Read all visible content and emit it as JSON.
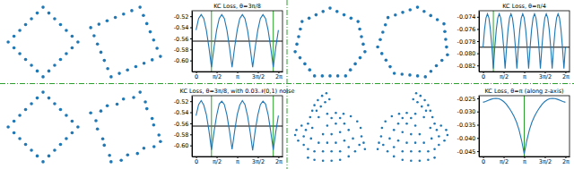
{
  "chart_data": [
    {
      "type": "scatter",
      "color": "#1f77b4",
      "tick_labels": false,
      "x": [
        0,
        0.167,
        0.333,
        0.5,
        0.667,
        0.833,
        1,
        0.833,
        0.667,
        0.5,
        0.333,
        0.167,
        0,
        -0.167,
        -0.333,
        -0.5,
        -0.667,
        -0.833,
        -1,
        -0.833,
        -0.667,
        -0.5,
        -0.333,
        -0.167
      ],
      "y": [
        1,
        0.833,
        0.667,
        0.5,
        0.333,
        0.167,
        0,
        -0.167,
        -0.333,
        -0.5,
        -0.667,
        -0.833,
        -1,
        -0.833,
        -0.667,
        -0.5,
        -0.333,
        -0.167,
        0,
        0.167,
        0.333,
        0.5,
        0.667,
        0.833
      ]
    },
    {
      "type": "scatter",
      "color": "#1f77b4",
      "tick_labels": false,
      "x": [
        -0.924,
        -0.706,
        -0.489,
        -0.271,
        -0.052,
        0.165,
        0.383,
        0.473,
        0.563,
        0.653,
        0.744,
        0.834,
        0.924,
        0.706,
        0.489,
        0.271,
        0.052,
        -0.165,
        -0.383,
        -0.473,
        -0.563,
        -0.653,
        -0.744,
        -0.834
      ],
      "y": [
        0.383,
        0.473,
        0.563,
        0.653,
        0.744,
        0.834,
        0.924,
        0.706,
        0.489,
        0.271,
        0.052,
        -0.165,
        -0.383,
        -0.473,
        -0.563,
        -0.653,
        -0.744,
        -0.834,
        -0.924,
        -0.706,
        -0.489,
        -0.271,
        -0.052,
        0.165
      ]
    },
    {
      "type": "line",
      "title": "KC Loss, θ=3π/8",
      "color": "#1f77b4",
      "x": [
        0,
        0.1963,
        0.3927,
        0.589,
        0.7854,
        0.9817,
        1.1781,
        1.3744,
        1.5708,
        1.7671,
        1.9635,
        2.1598,
        2.3562,
        2.5525,
        2.7489,
        2.9452,
        3.1416,
        3.3379,
        3.5343,
        3.7306,
        3.927,
        4.1233,
        4.3197,
        4.516,
        4.7124,
        4.9087,
        5.1051,
        5.3014,
        5.4978,
        5.6941,
        5.8905,
        6.0868,
        6.2832
      ],
      "values": [
        -0.545,
        -0.524,
        -0.517,
        -0.524,
        -0.545,
        -0.576,
        -0.612,
        -0.576,
        -0.545,
        -0.524,
        -0.517,
        -0.524,
        -0.545,
        -0.576,
        -0.612,
        -0.576,
        -0.545,
        -0.524,
        -0.517,
        -0.524,
        -0.545,
        -0.576,
        -0.612,
        -0.576,
        -0.545,
        -0.524,
        -0.517,
        -0.524,
        -0.545,
        -0.576,
        -0.612,
        -0.576,
        -0.545
      ],
      "xlim": [
        -0.3142,
        6.5974
      ],
      "ylim": [
        -0.62,
        -0.51
      ],
      "xticks": [
        0,
        {
          "value": 1.5708,
          "label": "π/2"
        },
        {
          "value": 3.1416,
          "label": "π"
        },
        {
          "value": 4.7124,
          "label": "3π/2"
        },
        {
          "value": 6.2832,
          "label": "2π"
        }
      ],
      "yticks": [
        -0.52,
        -0.54,
        -0.56,
        -0.58,
        {
          "value": -0.6,
          "label": "-0.60"
        }
      ],
      "vlines": [
        1.1781,
        5.8905
      ],
      "hlines": [
        -0.565
      ]
    },
    {
      "type": "scatter",
      "color": "#1f77b4",
      "tick_labels": false,
      "x": [
        0,
        -0.195,
        -0.391,
        -0.586,
        -0.782,
        -0.83,
        -0.878,
        -0.927,
        -0.975,
        -0.84,
        -0.704,
        -0.569,
        -0.434,
        -0.217,
        0,
        0.217,
        0.434,
        0.569,
        0.704,
        0.84,
        0.975,
        0.927,
        0.878,
        0.83,
        0.782,
        0.586,
        0.391,
        0.195
      ],
      "y": [
        1,
        0.906,
        0.812,
        0.718,
        0.624,
        0.412,
        0.201,
        -0.011,
        -0.223,
        -0.392,
        -0.562,
        -0.731,
        -0.901,
        -0.901,
        -0.901,
        -0.901,
        -0.901,
        -0.731,
        -0.562,
        -0.392,
        -0.223,
        -0.011,
        0.201,
        0.412,
        0.624,
        0.718,
        0.812,
        0.906
      ]
    },
    {
      "type": "scatter",
      "color": "#1f77b4",
      "tick_labels": false,
      "x": [
        -0.707,
        -0.779,
        -0.851,
        -0.922,
        -0.994,
        -0.878,
        -0.763,
        -0.648,
        -0.532,
        -0.317,
        -0.1,
        0.115,
        0.33,
        0.484,
        0.637,
        0.791,
        0.944,
        0.919,
        0.895,
        0.871,
        0.847,
        0.663,
        0.479,
        0.296,
        0.112,
        -0.093,
        -0.298,
        -0.503
      ],
      "y": [
        0.707,
        0.503,
        0.298,
        0.093,
        -0.112,
        -0.296,
        -0.479,
        -0.663,
        -0.847,
        -0.871,
        -0.895,
        -0.919,
        -0.944,
        -0.791,
        -0.637,
        -0.484,
        -0.33,
        -0.115,
        0.1,
        0.317,
        0.532,
        0.648,
        0.763,
        0.878,
        0.994,
        0.922,
        0.851,
        0.779
      ]
    },
    {
      "type": "line",
      "title": "KC Loss, θ=π/4",
      "color": "#1f77b4",
      "x": [
        0,
        0.1122,
        0.2244,
        0.3366,
        0.4488,
        0.561,
        0.6732,
        0.7854,
        0.8976,
        1.0098,
        1.122,
        1.2342,
        1.3464,
        1.4586,
        1.5708,
        1.683,
        1.7952,
        1.9074,
        2.0196,
        2.1318,
        2.244,
        2.3562,
        2.4684,
        2.5806,
        2.6928,
        2.805,
        2.9172,
        3.0294,
        3.1416,
        3.2538,
        3.366,
        3.4782,
        3.5904,
        3.7026,
        3.8148,
        3.927,
        4.0392,
        4.1514,
        4.2636,
        4.3758,
        4.488,
        4.6002,
        4.7124,
        4.8246,
        4.9368,
        5.049,
        5.1612,
        5.2734,
        5.3856,
        5.4978,
        5.61,
        5.7222,
        5.8344,
        5.9466,
        6.0588,
        6.171,
        6.2832
      ],
      "values": [
        -0.079,
        -0.0761,
        -0.0742,
        -0.0735,
        -0.0742,
        -0.0761,
        -0.079,
        -0.0825,
        -0.079,
        -0.0761,
        -0.0742,
        -0.0735,
        -0.0742,
        -0.0761,
        -0.079,
        -0.0825,
        -0.079,
        -0.0761,
        -0.0742,
        -0.0735,
        -0.0742,
        -0.0761,
        -0.079,
        -0.0825,
        -0.079,
        -0.0761,
        -0.0742,
        -0.0735,
        -0.0742,
        -0.0761,
        -0.079,
        -0.0825,
        -0.079,
        -0.0761,
        -0.0742,
        -0.0735,
        -0.0742,
        -0.0761,
        -0.079,
        -0.0825,
        -0.079,
        -0.0761,
        -0.0742,
        -0.0735,
        -0.0742,
        -0.0761,
        -0.079,
        -0.0825,
        -0.079,
        -0.0761,
        -0.0742,
        -0.0735,
        -0.0742,
        -0.0761,
        -0.079,
        -0.0825,
        -0.079
      ],
      "xlim": [
        -0.3142,
        6.5974
      ],
      "ylim": [
        -0.083,
        -0.073
      ],
      "xticks": [
        0,
        {
          "value": 1.5708,
          "label": "π/2"
        },
        {
          "value": 3.1416,
          "label": "π"
        },
        {
          "value": 4.7124,
          "label": "3π/2"
        },
        {
          "value": 6.2832,
          "label": "2π"
        }
      ],
      "yticks": [
        -0.074,
        -0.076,
        -0.078,
        {
          "value": -0.08,
          "label": "-0.080"
        },
        -0.082
      ],
      "vlines": [
        0.7854
      ],
      "hlines": [
        -0.079
      ]
    },
    {
      "type": "scatter",
      "color": "#1f77b4",
      "tick_labels": false,
      "x": [
        0,
        0.167,
        0.333,
        0.5,
        0.667,
        0.833,
        1,
        0.833,
        0.667,
        0.5,
        0.333,
        0.167,
        0,
        -0.167,
        -0.333,
        -0.5,
        -0.667,
        -0.833,
        -1,
        -0.833,
        -0.667,
        -0.5,
        -0.333,
        -0.167
      ],
      "y": [
        1,
        0.833,
        0.667,
        0.5,
        0.333,
        0.167,
        0,
        -0.167,
        -0.333,
        -0.5,
        -0.667,
        -0.833,
        -1,
        -0.833,
        -0.667,
        -0.5,
        -0.333,
        -0.167,
        0,
        0.167,
        0.333,
        0.5,
        0.667,
        0.833
      ]
    },
    {
      "type": "scatter",
      "color": "#1f77b4",
      "tick_labels": false,
      "x": [
        -0.95,
        -0.68,
        -0.51,
        -0.25,
        -0.08,
        0.19,
        0.36,
        0.5,
        0.54,
        0.68,
        0.72,
        0.86,
        0.9,
        0.73,
        0.46,
        0.29,
        0.03,
        -0.14,
        -0.41,
        -0.45,
        -0.59,
        -0.63,
        -0.77,
        -0.81
      ],
      "y": [
        0.4,
        0.45,
        0.59,
        0.63,
        0.77,
        0.81,
        0.95,
        0.69,
        0.51,
        0.25,
        0.08,
        -0.19,
        -0.36,
        -0.5,
        -0.54,
        -0.68,
        -0.72,
        -0.86,
        -0.9,
        -0.73,
        -0.46,
        -0.29,
        -0.03,
        0.19
      ]
    },
    {
      "type": "line",
      "title": "KC Loss, θ=3π/8, with 0.03𝒩(0,1) noise",
      "color": "#1f77b4",
      "x": [
        0,
        0.1963,
        0.3927,
        0.589,
        0.7854,
        0.9817,
        1.1781,
        1.3744,
        1.5708,
        1.7671,
        1.9635,
        2.1598,
        2.3562,
        2.5525,
        2.7489,
        2.9452,
        3.1416,
        3.3379,
        3.5343,
        3.7306,
        3.927,
        4.1233,
        4.3197,
        4.516,
        4.7124,
        4.9087,
        5.1051,
        5.3014,
        5.4978,
        5.6941,
        5.8905,
        6.0868,
        6.2832
      ],
      "values": [
        -0.546,
        -0.526,
        -0.519,
        -0.527,
        -0.544,
        -0.573,
        -0.608,
        -0.575,
        -0.546,
        -0.525,
        -0.52,
        -0.526,
        -0.545,
        -0.574,
        -0.607,
        -0.574,
        -0.544,
        -0.527,
        -0.519,
        -0.526,
        -0.546,
        -0.575,
        -0.609,
        -0.573,
        -0.545,
        -0.526,
        -0.52,
        -0.525,
        -0.544,
        -0.574,
        -0.608,
        -0.575,
        -0.546
      ],
      "xlim": [
        -0.3142,
        6.5974
      ],
      "ylim": [
        -0.62,
        -0.51
      ],
      "xticks": [
        0,
        {
          "value": 1.5708,
          "label": "π/2"
        },
        {
          "value": 3.1416,
          "label": "π"
        },
        {
          "value": 4.7124,
          "label": "3π/2"
        },
        {
          "value": 6.2832,
          "label": "2π"
        }
      ],
      "yticks": [
        -0.52,
        -0.54,
        -0.56,
        -0.58,
        {
          "value": -0.6,
          "label": "-0.60"
        }
      ],
      "vlines": [
        1.1781,
        5.8905
      ],
      "hlines": [
        -0.565
      ]
    },
    {
      "type": "scatter",
      "color": "#1f77b4",
      "tick_labels": false,
      "x": [
        -0.45,
        -0.3,
        -0.1,
        0.1,
        0.3,
        0.5,
        0.65,
        0.75,
        0.8,
        0.78,
        0.7,
        0.55,
        0.38,
        0.2,
        0.0,
        -0.2,
        -0.3,
        -0.1,
        0.1,
        0.3,
        0.5,
        -0.2,
        0.0,
        0.2,
        0.4,
        0.6,
        -0.1,
        0.1,
        0.3,
        0.5,
        0.0,
        0.2,
        0.4,
        0.1,
        0.3,
        -0.45,
        -0.6,
        -0.72,
        -0.75,
        -0.68,
        -0.55,
        -0.45,
        -0.5,
        -0.55,
        -0.38,
        -0.35,
        -0.4,
        -0.35,
        -0.3,
        -0.22,
        -0.12,
        -0.02,
        -0.25,
        -0.15,
        -0.05,
        0.05,
        0.85,
        0.88
      ],
      "y": [
        -0.65,
        -0.7,
        -0.72,
        -0.72,
        -0.7,
        -0.62,
        -0.5,
        -0.35,
        -0.15,
        0.05,
        0.2,
        0.32,
        0.38,
        0.4,
        0.38,
        0.3,
        -0.5,
        -0.5,
        -0.5,
        -0.5,
        -0.4,
        -0.3,
        -0.3,
        -0.3,
        -0.25,
        -0.2,
        -0.1,
        -0.1,
        -0.05,
        0.0,
        0.1,
        0.15,
        0.15,
        0.28,
        0.28,
        0.15,
        0.1,
        0.0,
        -0.12,
        -0.25,
        -0.35,
        -0.45,
        0.0,
        -0.15,
        -0.2,
        0.05,
        0.3,
        0.45,
        0.58,
        0.7,
        0.8,
        0.86,
        0.45,
        0.55,
        0.65,
        0.72,
        -0.3,
        -0.45
      ]
    },
    {
      "type": "scatter",
      "color": "#1f77b4",
      "tick_labels": false,
      "x": [
        0.45,
        0.3,
        0.1,
        -0.1,
        -0.3,
        -0.5,
        -0.65,
        -0.75,
        -0.8,
        -0.78,
        -0.7,
        -0.55,
        -0.38,
        -0.2,
        0.0,
        0.2,
        0.3,
        0.1,
        -0.1,
        -0.3,
        -0.5,
        0.2,
        0.0,
        -0.2,
        -0.4,
        -0.6,
        0.1,
        -0.1,
        -0.3,
        -0.5,
        0.0,
        -0.2,
        -0.4,
        -0.1,
        -0.3,
        0.45,
        0.6,
        0.72,
        0.75,
        0.68,
        0.55,
        0.45,
        0.5,
        0.55,
        0.38,
        0.35,
        0.4,
        0.35,
        0.3,
        0.22,
        0.12,
        0.02,
        0.25,
        0.15,
        0.05,
        -0.05,
        -0.85,
        -0.88
      ],
      "y": [
        -0.65,
        -0.7,
        -0.72,
        -0.72,
        -0.7,
        -0.62,
        -0.5,
        -0.35,
        -0.15,
        0.05,
        0.2,
        0.32,
        0.38,
        0.4,
        0.38,
        0.3,
        -0.5,
        -0.5,
        -0.5,
        -0.5,
        -0.4,
        -0.3,
        -0.3,
        -0.3,
        -0.25,
        -0.2,
        -0.1,
        -0.1,
        -0.05,
        0.0,
        0.1,
        0.15,
        0.15,
        0.28,
        0.28,
        0.15,
        0.1,
        0.0,
        -0.12,
        -0.25,
        -0.35,
        -0.45,
        0.0,
        -0.15,
        -0.2,
        0.05,
        0.3,
        0.45,
        0.58,
        0.7,
        0.8,
        0.86,
        0.45,
        0.55,
        0.65,
        0.72,
        -0.3,
        -0.45
      ]
    },
    {
      "type": "line",
      "title": "KC Loss, θ=π (along z-axis)",
      "color": "#1f77b4",
      "x": [
        0,
        0.1963,
        0.3927,
        0.589,
        0.7854,
        0.9817,
        1.1781,
        1.3744,
        1.5708,
        1.7671,
        1.9635,
        2.1598,
        2.3562,
        2.5525,
        2.7489,
        2.9452,
        3.1416,
        3.3379,
        3.5343,
        3.7306,
        3.927,
        4.1233,
        4.3197,
        4.516,
        4.7124,
        4.9087,
        5.1051,
        5.3014,
        5.4978,
        5.6941,
        5.8905,
        6.0868,
        6.2832
      ],
      "values": [
        -0.0265,
        -0.0262,
        -0.0258,
        -0.0254,
        -0.0251,
        -0.025,
        -0.0251,
        -0.0255,
        -0.0262,
        -0.0272,
        -0.0285,
        -0.03,
        -0.0318,
        -0.034,
        -0.037,
        -0.041,
        -0.046,
        -0.041,
        -0.037,
        -0.034,
        -0.0318,
        -0.03,
        -0.0285,
        -0.0272,
        -0.0262,
        -0.0255,
        -0.0251,
        -0.025,
        -0.0251,
        -0.0254,
        -0.0258,
        -0.0262,
        -0.0265
      ],
      "xlim": [
        -0.3142,
        6.5974
      ],
      "ylim": [
        -0.047,
        -0.024
      ],
      "xticks": [
        0,
        {
          "value": 1.5708,
          "label": "π/2"
        },
        {
          "value": 3.1416,
          "label": "π"
        },
        {
          "value": 4.7124,
          "label": "3π/2"
        },
        {
          "value": 6.2832,
          "label": "2π"
        }
      ],
      "yticks": [
        -0.025,
        {
          "value": -0.03,
          "label": "-0.030"
        },
        -0.035,
        {
          "value": -0.04,
          "label": "-0.040"
        },
        -0.045
      ],
      "vlines": [
        3.1416
      ]
    }
  ]
}
